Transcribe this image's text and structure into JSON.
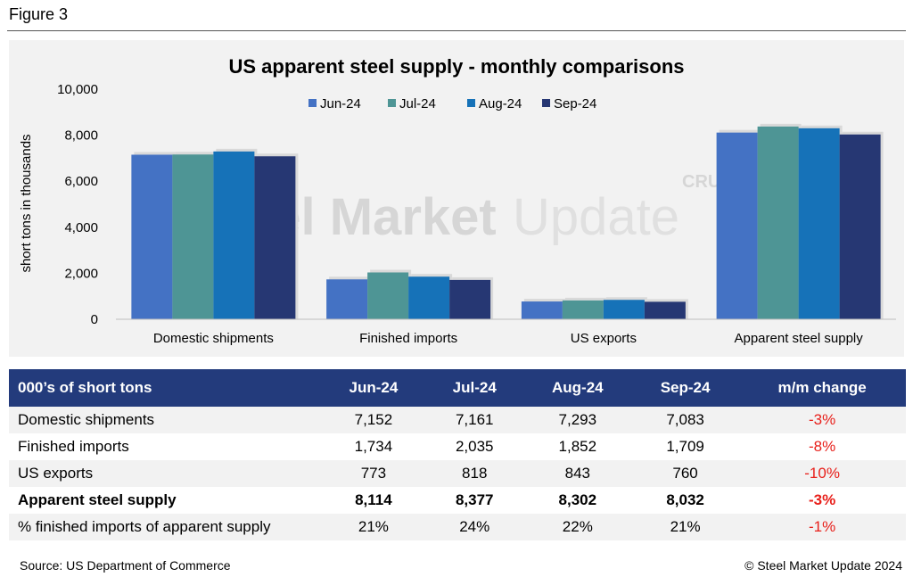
{
  "figure_label": "Figure 3",
  "chart_data": {
    "type": "bar",
    "title": "US apparent steel supply - monthly comparisons",
    "ylabel": "short tons in thousands",
    "xlabel": "",
    "categories": [
      "Domestic shipments",
      "Finished imports",
      "US exports",
      "Apparent steel supply"
    ],
    "series": [
      {
        "name": "Jun-24",
        "values": [
          7152,
          1734,
          773,
          8114
        ],
        "color": "#4472c4"
      },
      {
        "name": "Jul-24",
        "values": [
          7161,
          2035,
          818,
          8377
        ],
        "color": "#4e9595"
      },
      {
        "name": "Aug-24",
        "values": [
          7293,
          1852,
          843,
          8302
        ],
        "color": "#1672b8"
      },
      {
        "name": "Sep-24",
        "values": [
          7083,
          1709,
          760,
          8032
        ],
        "color": "#263773"
      }
    ],
    "ylim": [
      0,
      10000
    ],
    "yticks": [
      "0",
      "2,000",
      "4,000",
      "6,000",
      "8,000",
      "10,000"
    ],
    "grid": false,
    "legend_position": "top"
  },
  "watermark": {
    "text_bold": "Steel Market",
    "text_light": "Update",
    "badge": "CRU"
  },
  "table": {
    "headers": [
      "000’s of short tons",
      "Jun-24",
      "Jul-24",
      "Aug-24",
      "Sep-24",
      "m/m change"
    ],
    "rows": [
      [
        "Domestic shipments",
        "7,152",
        "7,161",
        "7,293",
        "7,083",
        "-3%"
      ],
      [
        "Finished imports",
        "1,734",
        "2,035",
        "1,852",
        "1,709",
        "-8%"
      ],
      [
        "US exports",
        "773",
        "818",
        "843",
        "760",
        "-10%"
      ],
      [
        "Apparent steel supply",
        "8,114",
        "8,377",
        "8,302",
        "8,032",
        "-3%"
      ],
      [
        "% finished imports of apparent supply",
        "21%",
        "24%",
        "22%",
        "21%",
        "-1%"
      ]
    ]
  },
  "footer": {
    "source": "Source: US Department of Commerce",
    "copyright": "© Steel Market Update 2024"
  },
  "colors": {
    "header_bg": "#233b7c",
    "negative": "#e8201b",
    "panel_bg": "#f2f2f2"
  }
}
